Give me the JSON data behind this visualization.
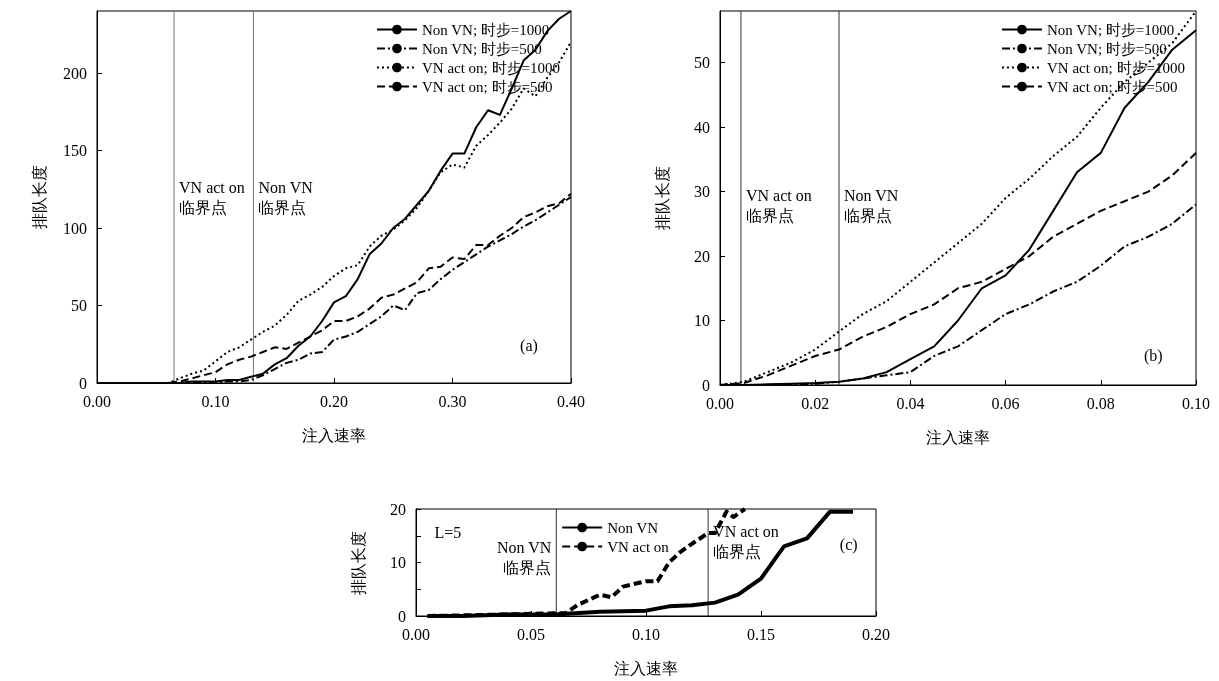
{
  "chart_data": [
    {
      "type": "line",
      "xlabel": "注入速率",
      "ylabel": "排队长度",
      "xlim": [
        0,
        0.4
      ],
      "ylim": [
        0,
        240
      ],
      "xticks": [
        {
          "value": 0,
          "label": "0.00"
        },
        {
          "value": 0.1,
          "label": "0.10"
        },
        {
          "value": 0.2,
          "label": "0.20"
        },
        {
          "value": 0.3,
          "label": "0.30"
        },
        {
          "value": 0.4,
          "label": "0.40"
        }
      ],
      "yticks": [
        0,
        50,
        100,
        150,
        200
      ],
      "legend": "top right",
      "x": [
        0,
        0.01,
        0.02,
        0.03,
        0.04,
        0.05,
        0.06,
        0.07,
        0.08,
        0.09,
        0.1,
        0.11,
        0.12,
        0.13,
        0.14,
        0.15,
        0.16,
        0.17,
        0.18,
        0.19,
        0.2,
        0.21,
        0.22,
        0.23,
        0.24,
        0.25,
        0.26,
        0.27,
        0.28,
        0.29,
        0.3,
        0.31,
        0.32,
        0.33,
        0.34,
        0.35,
        0.36,
        0.37,
        0.38,
        0.39,
        0.4
      ],
      "series": [
        {
          "name": "Non VN; 时步=1000",
          "color": "#000000",
          "line_style": "solid",
          "values": [
            0,
            0,
            0,
            0,
            0,
            0,
            0,
            0,
            1,
            1,
            1,
            2,
            2,
            4,
            6,
            12,
            16,
            24,
            30,
            40,
            52,
            56,
            67,
            83,
            90,
            100,
            106,
            115,
            124,
            137,
            148,
            148,
            165,
            176,
            173,
            190,
            208,
            215,
            227,
            235,
            240
          ]
        },
        {
          "name": "Non VN; 时步=500",
          "color": "#000000",
          "line_style": "dashdot",
          "values": [
            0,
            0,
            0,
            0,
            0,
            0,
            0,
            0,
            0,
            0,
            0,
            1,
            1,
            2,
            5,
            9,
            13,
            15,
            19,
            20,
            28,
            30,
            33,
            38,
            43,
            50,
            47,
            58,
            60,
            67,
            73,
            78,
            83,
            88,
            92,
            96,
            101,
            105,
            110,
            115,
            120
          ]
        },
        {
          "name": "VN act on; 时步=1000",
          "color": "#000000",
          "line_style": "dotted",
          "values": [
            0,
            0,
            0,
            0,
            0,
            0,
            0,
            3,
            6,
            8,
            14,
            20,
            23,
            28,
            33,
            37,
            44,
            53,
            57,
            62,
            69,
            74,
            76,
            88,
            95,
            99,
            105,
            113,
            124,
            136,
            141,
            139,
            153,
            160,
            168,
            177,
            190,
            185,
            197,
            207,
            220
          ]
        },
        {
          "name": "VN act on; 时步=500",
          "color": "#000000",
          "line_style": "dashed",
          "values": [
            0,
            0,
            0,
            0,
            0,
            0,
            0,
            1,
            3,
            5,
            7,
            12,
            15,
            17,
            20,
            23,
            22,
            26,
            30,
            34,
            40,
            40,
            43,
            48,
            55,
            57,
            61,
            65,
            74,
            75,
            81,
            80,
            89,
            89,
            95,
            100,
            107,
            110,
            114,
            116,
            122
          ]
        }
      ],
      "ref_lines": [
        {
          "axis": "x",
          "value": 0.065,
          "label": "VN act on\n临界点",
          "color": "#777777"
        },
        {
          "axis": "x",
          "value": 0.132,
          "label": "Non VN\n临界点",
          "color": "#777777"
        }
      ],
      "annotations": [
        "(a)"
      ]
    },
    {
      "type": "line",
      "xlabel": "注入速率",
      "ylabel": "排队长度",
      "xlim": [
        0,
        0.1
      ],
      "ylim": [
        0,
        58
      ],
      "xticks": [
        {
          "value": 0,
          "label": "0.00"
        },
        {
          "value": 0.02,
          "label": "0.02"
        },
        {
          "value": 0.04,
          "label": "0.04"
        },
        {
          "value": 0.06,
          "label": "0.06"
        },
        {
          "value": 0.08,
          "label": "0.08"
        },
        {
          "value": 0.1,
          "label": "0.10"
        }
      ],
      "yticks": [
        0,
        10,
        20,
        30,
        40,
        50
      ],
      "legend": "top right",
      "x": [
        0,
        0.005,
        0.01,
        0.015,
        0.02,
        0.025,
        0.03,
        0.035,
        0.04,
        0.045,
        0.05,
        0.055,
        0.06,
        0.065,
        0.07,
        0.075,
        0.08,
        0.085,
        0.09,
        0.095,
        0.1
      ],
      "series": [
        {
          "name": "Non VN; 时步=1000",
          "color": "#000000",
          "line_style": "solid",
          "values": [
            0,
            0,
            0.1,
            0.2,
            0.3,
            0.5,
            1,
            2,
            4,
            6,
            10,
            15,
            17,
            21,
            27,
            33,
            36,
            43,
            47,
            52,
            55
          ]
        },
        {
          "name": "Non VN; 时步=500",
          "color": "#000000",
          "line_style": "dashdot",
          "values": [
            0,
            0,
            0,
            0.1,
            0.2,
            0.5,
            1,
            1.5,
            2,
            4.5,
            6,
            8.5,
            11,
            12.5,
            14.5,
            16,
            18.5,
            21.5,
            23,
            25,
            28
          ]
        },
        {
          "name": "VN act on; 时步=1000",
          "color": "#000000",
          "line_style": "dotted",
          "values": [
            0,
            0.5,
            2,
            3.5,
            5.5,
            8.3,
            11,
            13,
            16,
            19,
            22,
            25,
            29,
            32,
            35.5,
            38.5,
            43,
            47,
            50,
            53,
            58
          ]
        },
        {
          "name": "VN act on; 时步=500",
          "color": "#000000",
          "line_style": "dashed",
          "values": [
            0,
            0.3,
            1.5,
            3,
            4.5,
            5.5,
            7.5,
            9,
            11,
            12.5,
            15,
            16,
            18,
            20,
            23,
            25,
            27,
            28.5,
            30,
            32.5,
            36
          ]
        }
      ],
      "ref_lines": [
        {
          "axis": "x",
          "value": 0.0044,
          "label": "VN act on\n临界点",
          "color": "#333333"
        },
        {
          "axis": "x",
          "value": 0.025,
          "label": "Non VN\n临界点",
          "color": "#333333"
        }
      ],
      "annotations": [
        "(b)"
      ]
    },
    {
      "type": "line",
      "xlabel": "注入速率",
      "ylabel": "排队长度",
      "xlim": [
        0,
        0.2
      ],
      "ylim": [
        0,
        20
      ],
      "xticks": [
        {
          "value": 0,
          "label": "0.00"
        },
        {
          "value": 0.05,
          "label": "0.05"
        },
        {
          "value": 0.1,
          "label": "0.10"
        },
        {
          "value": 0.15,
          "label": "0.15"
        },
        {
          "value": 0.2,
          "label": "0.20"
        }
      ],
      "yticks": [
        0,
        {
          "value": 5,
          "label": null
        },
        10,
        {
          "value": 15,
          "label": null
        },
        20
      ],
      "legend": "top",
      "series": [
        {
          "name": "Non VN",
          "color": "#000000",
          "line_style": "solid",
          "x": [
            0.005,
            0.02,
            0.04,
            0.06,
            0.08,
            0.1,
            0.11,
            0.12,
            0.13,
            0.14,
            0.15,
            0.16,
            0.17,
            0.18,
            0.19
          ],
          "values": [
            0,
            0,
            0.3,
            0.3,
            0.8,
            1,
            1.8,
            2,
            2.5,
            4,
            7,
            13,
            14.5,
            19.5,
            19.5
          ]
        },
        {
          "name": "VN act on",
          "color": "#000000",
          "line_style": "dashed",
          "x": [
            0.005,
            0.03,
            0.06,
            0.065,
            0.07,
            0.08,
            0.085,
            0.09,
            0.1,
            0.105,
            0.11,
            0.115,
            0.12,
            0.127,
            0.13,
            0.135,
            0.138,
            0.143
          ],
          "values": [
            0,
            0.2,
            0.5,
            0.5,
            2,
            4,
            3.5,
            5.5,
            6.5,
            6.5,
            10,
            12,
            13.5,
            15.5,
            15.5,
            19.5,
            18.5,
            20
          ]
        }
      ],
      "ref_lines": [
        {
          "axis": "x",
          "value": 0.061,
          "label": "Non VN\n临界点",
          "color": "#333333"
        },
        {
          "axis": "x",
          "value": 0.127,
          "label": "VN act on\n临界点",
          "color": "#333333"
        }
      ],
      "annotations": [
        "L=5",
        "(c)"
      ]
    }
  ]
}
